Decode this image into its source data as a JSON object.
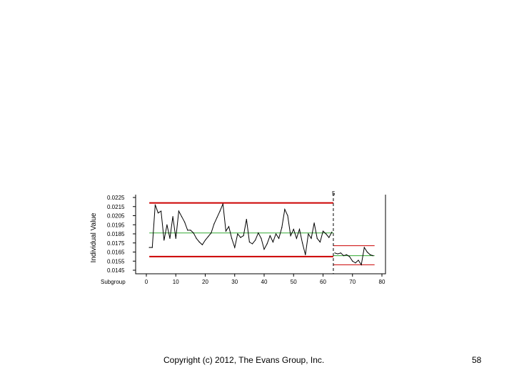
{
  "footer": {
    "copyright": "Copyright (c) 2012, The Evans Group, Inc.",
    "page_number": "58"
  },
  "chart_data": {
    "type": "line",
    "title": "",
    "ylabel": "Individual Value",
    "xlabel": "Subgroup",
    "ylim": [
      0.0145,
      0.0225
    ],
    "xlim": [
      0,
      80
    ],
    "y_ticks": [
      "0.0225",
      "0.0215",
      "0.0205",
      "0.0195",
      "0.0185",
      "0.0175",
      "0.0165",
      "0.0155",
      "0.0145"
    ],
    "x_ticks": [
      "0",
      "10",
      "20",
      "30",
      "40",
      "50",
      "60",
      "70",
      "80"
    ],
    "colors": {
      "series": "#000000",
      "control_limits": "#cc0000",
      "center_line": "#33aa33",
      "phase_divider": "#000000"
    },
    "phase_marker_label": "5",
    "phase_break_x": 63.5,
    "phases": [
      {
        "x_start": 1,
        "x_end": 63.5,
        "ucl": 0.0219,
        "center": 0.0186,
        "lcl": 0.016
      },
      {
        "x_start": 63.5,
        "x_end": 77.5,
        "ucl": 0.0172,
        "center": 0.0161,
        "lcl": 0.0151
      }
    ],
    "series": [
      {
        "values": [
          [
            1,
            0.017
          ],
          [
            2,
            0.017
          ],
          [
            3,
            0.0217
          ],
          [
            4,
            0.0208
          ],
          [
            5,
            0.021
          ],
          [
            6,
            0.0178
          ],
          [
            7,
            0.0195
          ],
          [
            8,
            0.018
          ],
          [
            9,
            0.0204
          ],
          [
            10,
            0.018
          ],
          [
            11,
            0.021
          ],
          [
            12,
            0.0204
          ],
          [
            13,
            0.0198
          ],
          [
            14,
            0.0189
          ],
          [
            15,
            0.0189
          ],
          [
            16,
            0.0186
          ],
          [
            17,
            0.018
          ],
          [
            18,
            0.0176
          ],
          [
            19,
            0.0173
          ],
          [
            20,
            0.0178
          ],
          [
            21,
            0.0182
          ],
          [
            22,
            0.0186
          ],
          [
            23,
            0.0196
          ],
          [
            24,
            0.0203
          ],
          [
            25,
            0.021
          ],
          [
            26,
            0.0218
          ],
          [
            27,
            0.0188
          ],
          [
            28,
            0.0193
          ],
          [
            29,
            0.018
          ],
          [
            30,
            0.017
          ],
          [
            31,
            0.0185
          ],
          [
            32,
            0.0181
          ],
          [
            33,
            0.0183
          ],
          [
            34,
            0.0201
          ],
          [
            35,
            0.0176
          ],
          [
            36,
            0.0174
          ],
          [
            37,
            0.0178
          ],
          [
            38,
            0.0186
          ],
          [
            39,
            0.018
          ],
          [
            40,
            0.0168
          ],
          [
            41,
            0.0174
          ],
          [
            42,
            0.0183
          ],
          [
            43,
            0.0176
          ],
          [
            44,
            0.0185
          ],
          [
            45,
            0.018
          ],
          [
            46,
            0.0192
          ],
          [
            47,
            0.0212
          ],
          [
            48,
            0.0205
          ],
          [
            49,
            0.0183
          ],
          [
            50,
            0.019
          ],
          [
            51,
            0.018
          ],
          [
            52,
            0.019
          ],
          [
            53,
            0.0175
          ],
          [
            54,
            0.0162
          ],
          [
            55,
            0.0185
          ],
          [
            56,
            0.018
          ],
          [
            57,
            0.0197
          ],
          [
            58,
            0.018
          ],
          [
            59,
            0.0176
          ],
          [
            60,
            0.0188
          ],
          [
            61,
            0.0185
          ],
          [
            62,
            0.0181
          ],
          [
            63,
            0.0187
          ]
        ]
      },
      {
        "values": [
          [
            64,
            0.0164
          ],
          [
            65,
            0.0163
          ],
          [
            66,
            0.0164
          ],
          [
            67,
            0.0161
          ],
          [
            68,
            0.0162
          ],
          [
            69,
            0.016
          ],
          [
            70,
            0.0155
          ],
          [
            71,
            0.0153
          ],
          [
            72,
            0.0156
          ],
          [
            73,
            0.0151
          ],
          [
            74,
            0.017
          ],
          [
            75,
            0.0165
          ],
          [
            76,
            0.0162
          ],
          [
            77,
            0.0161
          ]
        ]
      }
    ]
  }
}
